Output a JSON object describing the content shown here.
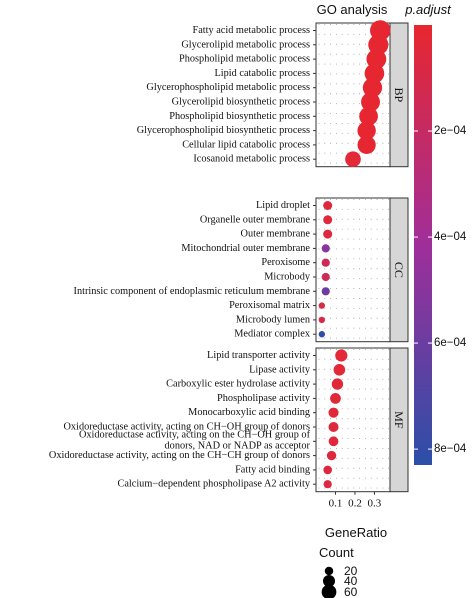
{
  "chart_data": {
    "type": "scatter",
    "title": "GO analysis",
    "xlabel": "GeneRatio",
    "xticks": [
      0.1,
      0.2,
      0.3
    ],
    "xlim": [
      0.0,
      0.38
    ],
    "color_legend": {
      "title": "p.adjust",
      "ticks": [
        "2e−04",
        "4e−04",
        "6e−04",
        "8e−04"
      ],
      "tick_values": [
        0.0002,
        0.0004,
        0.0006,
        0.0008
      ],
      "range": [
        0.0,
        0.00083
      ],
      "colors": [
        "#e8272f",
        "#2b4fa8"
      ]
    },
    "size_legend": {
      "title": "Count",
      "values": [
        20,
        40,
        60
      ],
      "labels": [
        "20",
        "40",
        "60"
      ]
    },
    "panels": [
      {
        "label": "BP",
        "terms": [
          {
            "name": "Fatty acid metabolic process",
            "x": 0.33,
            "count": 62,
            "padj": 1e-05
          },
          {
            "name": "Glycerolipid metabolic process",
            "x": 0.32,
            "count": 60,
            "padj": 1e-05
          },
          {
            "name": "Phospholipid metabolic process",
            "x": 0.31,
            "count": 58,
            "padj": 1e-05
          },
          {
            "name": "Lipid catabolic process",
            "x": 0.3,
            "count": 57,
            "padj": 1e-05
          },
          {
            "name": "Glycerophospholipid metabolic process",
            "x": 0.29,
            "count": 55,
            "padj": 1e-05
          },
          {
            "name": "Glycerolipid biosynthetic process",
            "x": 0.28,
            "count": 53,
            "padj": 1e-05
          },
          {
            "name": "Phospholipid biosynthetic process",
            "x": 0.27,
            "count": 52,
            "padj": 1e-05
          },
          {
            "name": "Glycerophospholipid biosynthetic process",
            "x": 0.26,
            "count": 50,
            "padj": 1e-05
          },
          {
            "name": "Cellular lipid catabolic process",
            "x": 0.26,
            "count": 49,
            "padj": 1e-05
          },
          {
            "name": "Icosanoid metabolic process",
            "x": 0.19,
            "count": 36,
            "padj": 3e-05
          }
        ]
      },
      {
        "label": "CC",
        "terms": [
          {
            "name": "Lipid droplet",
            "x": 0.06,
            "count": 12,
            "padj": 5e-05
          },
          {
            "name": "Organelle outer membrane",
            "x": 0.06,
            "count": 12,
            "padj": 6e-05
          },
          {
            "name": "Outer membrane",
            "x": 0.06,
            "count": 12,
            "padj": 6e-05
          },
          {
            "name": "Mitochondrial outer membrane",
            "x": 0.05,
            "count": 10,
            "padj": 0.0005
          },
          {
            "name": "Peroxisome",
            "x": 0.05,
            "count": 10,
            "padj": 0.00015
          },
          {
            "name": "Microbody",
            "x": 0.05,
            "count": 10,
            "padj": 0.00015
          },
          {
            "name": "Intrinsic component of endoplasmic reticulum membrane",
            "x": 0.05,
            "count": 10,
            "padj": 0.0006
          },
          {
            "name": "Peroxisomal matrix",
            "x": 0.03,
            "count": 6,
            "padj": 0.0001
          },
          {
            "name": "Microbody lumen",
            "x": 0.03,
            "count": 6,
            "padj": 0.0001
          },
          {
            "name": "Mediator complex",
            "x": 0.03,
            "count": 6,
            "padj": 0.0008
          }
        ]
      },
      {
        "label": "MF",
        "terms": [
          {
            "name": "Lipid transporter activity",
            "x": 0.13,
            "count": 22,
            "padj": 3e-05
          },
          {
            "name": "Lipase activity",
            "x": 0.12,
            "count": 20,
            "padj": 3e-05
          },
          {
            "name": "Carboxylic ester hydrolase activity",
            "x": 0.11,
            "count": 19,
            "padj": 4e-05
          },
          {
            "name": "Phospholipase activity",
            "x": 0.1,
            "count": 17,
            "padj": 4e-05
          },
          {
            "name": "Monocarboxylic acid binding",
            "x": 0.09,
            "count": 15,
            "padj": 4e-05
          },
          {
            "name": "Oxidoreductase activity, acting on CH−OH group of donors",
            "x": 0.09,
            "count": 15,
            "padj": 5e-05
          },
          {
            "name": [
              "Oxidoreductase activity, acting on the CH−OH group of",
              "donors, NAD or NADP as acceptor"
            ],
            "x": 0.09,
            "count": 14,
            "padj": 5e-05
          },
          {
            "name": "Oxidoreductase activity, acting on the CH−CH group of donors",
            "x": 0.08,
            "count": 13,
            "padj": 5e-05
          },
          {
            "name": "Fatty acid binding",
            "x": 0.06,
            "count": 11,
            "padj": 6e-05
          },
          {
            "name": "Calcium−dependent phospholipase A2 activity",
            "x": 0.06,
            "count": 10,
            "padj": 7e-05
          }
        ]
      }
    ]
  }
}
